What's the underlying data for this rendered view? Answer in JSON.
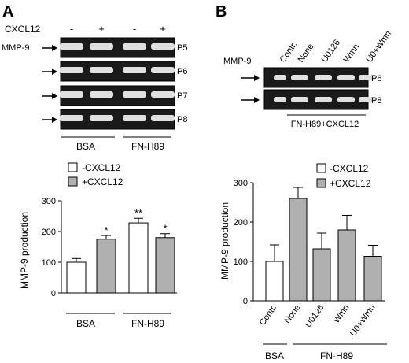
{
  "panel_a": {
    "letter": "A",
    "treatment_label": "CXCL12",
    "treatment_signs": [
      "-",
      "+",
      "-",
      "+"
    ],
    "protein_label": "MMP-9",
    "passages": [
      "P5",
      "P6",
      "P7",
      "P8"
    ],
    "groups": [
      "BSA",
      "FN-H89"
    ]
  },
  "panel_b": {
    "letter": "B",
    "protein_label": "MMP-9",
    "lane_labels": [
      "Contr.",
      "None",
      "U0126",
      "Wmn",
      "U0+Wmn"
    ],
    "passages": [
      "P6",
      "P8"
    ],
    "bracket_label": "FN-H89+CXCL12"
  },
  "colors": {
    "open_bar": "#ffffff",
    "filled_bar": "#b0b0b0",
    "gel_dark": "#1a1a1a",
    "band": "#e0e0e0"
  },
  "chart_data": [
    {
      "type": "bar",
      "ylabel": "MMP-9 production",
      "ylim": [
        0,
        300
      ],
      "yticks": [
        0,
        100,
        200,
        300
      ],
      "series": [
        {
          "name": "-CXCL12",
          "color": "#ffffff"
        },
        {
          "name": "+CXCL12",
          "color": "#b0b0b0"
        }
      ],
      "bars": [
        {
          "series": 0,
          "value": 100,
          "error": 12,
          "label": ""
        },
        {
          "series": 1,
          "value": 175,
          "error": 12,
          "label": "*"
        },
        {
          "series": 0,
          "value": 228,
          "error": 15,
          "label": "**"
        },
        {
          "series": 1,
          "value": 180,
          "error": 13,
          "label": "*"
        }
      ],
      "groups": [
        "BSA",
        "FN-H89"
      ]
    },
    {
      "type": "bar",
      "ylabel": "MMP-9 production",
      "ylim": [
        0,
        300
      ],
      "yticks": [
        0,
        100,
        200,
        300
      ],
      "series": [
        {
          "name": "-CXCL12",
          "color": "#ffffff"
        },
        {
          "name": "+CXCL12",
          "color": "#b0b0b0"
        }
      ],
      "categories": [
        "Contr.",
        "None",
        "U0126",
        "Wmn",
        "U0+Wmn"
      ],
      "bars": [
        {
          "series": 0,
          "value": 100,
          "error": 42,
          "label": ""
        },
        {
          "series": 1,
          "value": 260,
          "error": 28,
          "label": ""
        },
        {
          "series": 1,
          "value": 132,
          "error": 40,
          "label": ""
        },
        {
          "series": 1,
          "value": 180,
          "error": 37,
          "label": ""
        },
        {
          "series": 1,
          "value": 113,
          "error": 28,
          "label": ""
        }
      ],
      "groups": [
        "BSA",
        "FN-H89"
      ]
    }
  ]
}
